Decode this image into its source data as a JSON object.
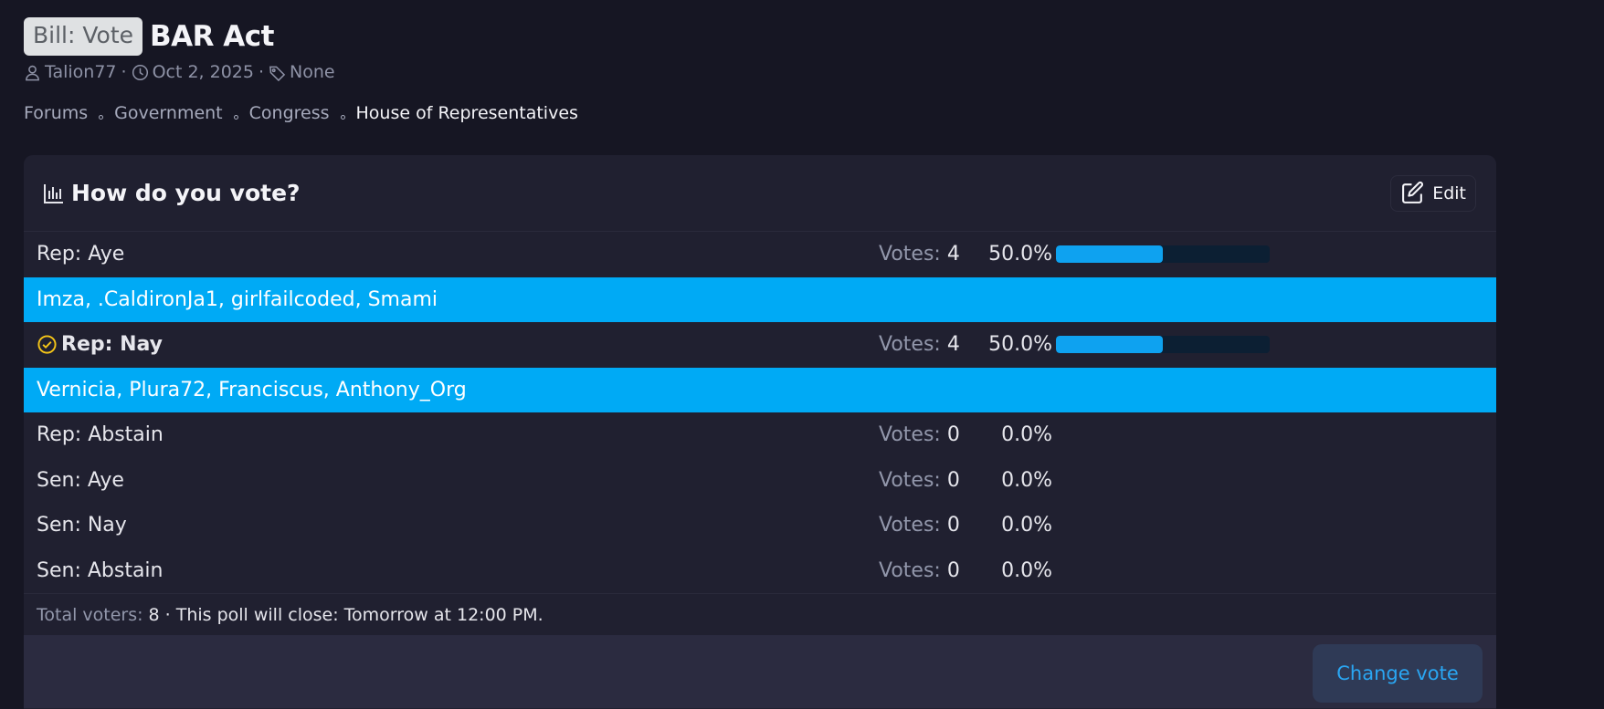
{
  "thread": {
    "prefix": "Bill: Vote",
    "title": "BAR Act",
    "author": "Talion77",
    "date": "Oct 2, 2025",
    "tags": "None",
    "meta_separator": "·"
  },
  "breadcrumb": [
    {
      "label": "Forums"
    },
    {
      "label": "Government"
    },
    {
      "label": "Congress"
    },
    {
      "label": "House of Representatives",
      "current": true
    }
  ],
  "poll": {
    "title": "How do you vote?",
    "edit_label": "Edit",
    "votes_prefix": "Votes:",
    "options": [
      {
        "label": "Rep: Aye",
        "votes": "4",
        "percent": "50.0%",
        "fraction": 0.5,
        "voters": "Imza, .CaldironJa1, girlfailcoded, Smami",
        "selected": false
      },
      {
        "label": "Rep: Nay",
        "votes": "4",
        "percent": "50.0%",
        "fraction": 0.5,
        "voters": "Vernicia, Plura72, Franciscus, Anthony_Org",
        "selected": true
      },
      {
        "label": "Rep: Abstain",
        "votes": "0",
        "percent": "0.0%",
        "fraction": 0
      },
      {
        "label": "Sen: Aye",
        "votes": "0",
        "percent": "0.0%",
        "fraction": 0
      },
      {
        "label": "Sen: Nay",
        "votes": "0",
        "percent": "0.0%",
        "fraction": 0
      },
      {
        "label": "Sen: Abstain",
        "votes": "0",
        "percent": "0.0%",
        "fraction": 0
      }
    ],
    "footer": {
      "total_label": "Total voters:",
      "total_value": "8",
      "close_text": "· This poll will close: Tomorrow at 12:00 PM."
    },
    "change_vote_label": "Change vote"
  },
  "icons": {
    "author": "user-icon",
    "date": "clock-icon",
    "tags": "tag-icon",
    "poll": "bar-chart-icon",
    "edit": "edit-icon",
    "selected": "check-circle-icon"
  },
  "colors": {
    "accent": "#00aaf5",
    "bar_fill": "#0ea2f0",
    "selected_check": "#f5c518"
  }
}
